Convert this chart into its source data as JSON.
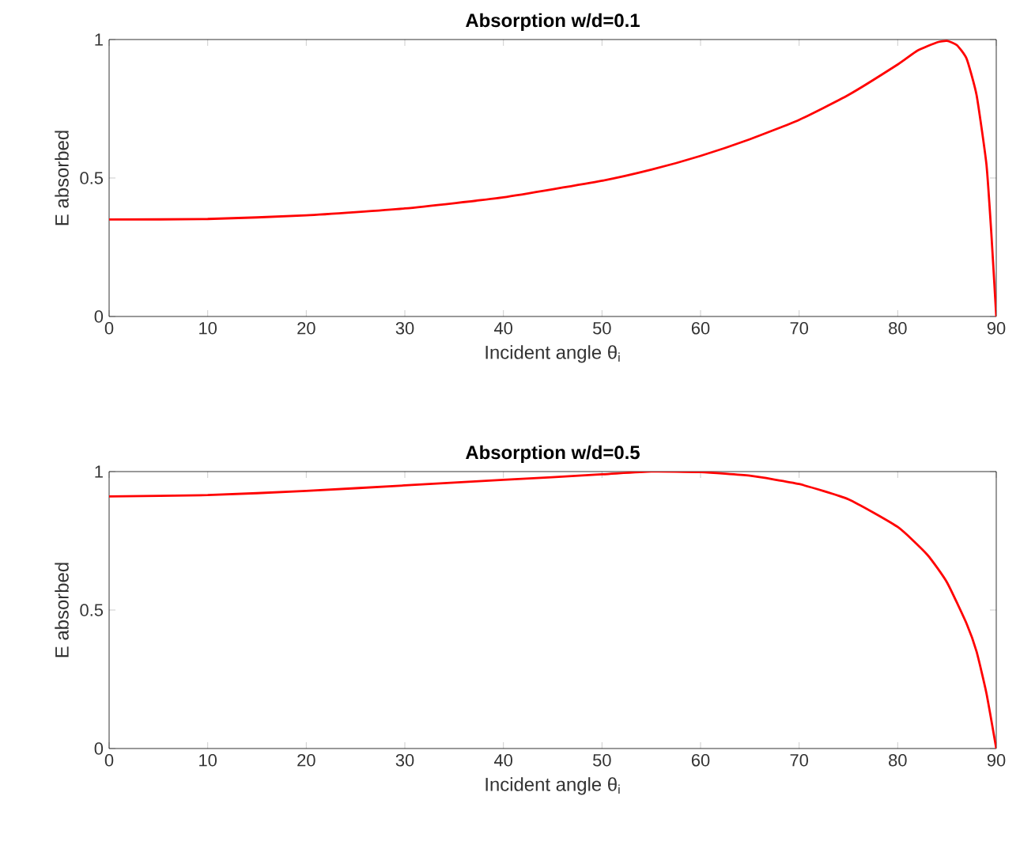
{
  "chart_data": [
    {
      "type": "line",
      "title": "Absorption w/d=0.1",
      "xlabel": "Incident angle θ$_{i}$",
      "ylabel": "E absorbed",
      "xlim": [
        0,
        90
      ],
      "ylim": [
        0,
        1
      ],
      "xticks": [
        0,
        10,
        20,
        30,
        40,
        50,
        60,
        70,
        80,
        90
      ],
      "yticks": [
        0,
        0.5,
        1
      ],
      "grid": false,
      "series": [
        {
          "color": "#ff0000",
          "x": [
            0,
            10,
            20,
            30,
            40,
            50,
            55,
            60,
            65,
            70,
            75,
            80,
            82,
            84,
            85,
            86,
            87,
            88,
            89,
            89.5,
            90
          ],
          "values": [
            0.35,
            0.352,
            0.365,
            0.39,
            0.43,
            0.49,
            0.53,
            0.58,
            0.64,
            0.71,
            0.8,
            0.91,
            0.96,
            0.99,
            0.995,
            0.98,
            0.93,
            0.8,
            0.55,
            0.3,
            0
          ]
        }
      ]
    },
    {
      "type": "line",
      "title": "Absorption w/d=0.5",
      "xlabel": "Incident angle θ$_{i}$",
      "ylabel": "E absorbed",
      "xlim": [
        0,
        90
      ],
      "ylim": [
        0,
        1
      ],
      "xticks": [
        0,
        10,
        20,
        30,
        40,
        50,
        60,
        70,
        80,
        90
      ],
      "yticks": [
        0,
        0.5,
        1
      ],
      "grid": false,
      "series": [
        {
          "color": "#ff0000",
          "x": [
            0,
            10,
            20,
            30,
            40,
            50,
            55,
            60,
            65,
            70,
            75,
            80,
            83,
            85,
            87,
            88,
            89,
            90
          ],
          "values": [
            0.91,
            0.915,
            0.93,
            0.95,
            0.97,
            0.99,
            1.0,
            0.998,
            0.985,
            0.955,
            0.9,
            0.8,
            0.7,
            0.6,
            0.45,
            0.35,
            0.2,
            0
          ]
        }
      ]
    }
  ]
}
